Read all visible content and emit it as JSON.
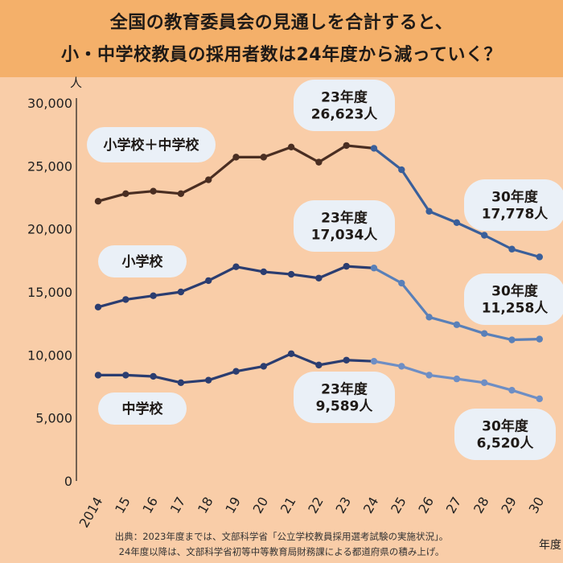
{
  "header": {
    "title_line1": "全国の教育委員会の見通しを合計すると、",
    "title_line2": "小・中学校教員の採用者数は24年度から減っていく？"
  },
  "footer": {
    "source_line1": "出典：2023年度までは、文部科学省「公立学校教員採用選考試験の実施状況」。",
    "source_line2": "24年度以降は、文部科学省初等中等教育局財務課による都道府県の積み上げ。"
  },
  "colors": {
    "background": "#f9cda8",
    "header_bg": "#f4b06a",
    "total_actual": "#4a2e22",
    "total_forecast": "#3a5f9a",
    "elementary_actual": "#2b3d70",
    "elementary_forecast": "#5a80b8",
    "junior_actual": "#2b3d70",
    "junior_forecast": "#6e8ec4",
    "bubble": "#eaf0f7",
    "axis": "#1a1a1a"
  },
  "chart_data": {
    "type": "line",
    "y_axis_unit": "人",
    "x_axis_unit": "年度",
    "x_tick_labels": [
      "2014",
      "15",
      "16",
      "17",
      "18",
      "19",
      "20",
      "21",
      "22",
      "23",
      "24",
      "25",
      "26",
      "27",
      "28",
      "29",
      "30"
    ],
    "y_ticks": [
      "0",
      "5,000",
      "10,000",
      "15,000",
      "20,000",
      "25,000",
      "30,000"
    ],
    "ylim": [
      0,
      30000
    ],
    "forecast_start_label": "24",
    "series": [
      {
        "name": "小学校＋中学校",
        "values": [
          22200,
          22800,
          23000,
          22800,
          23900,
          25700,
          25700,
          26500,
          25300,
          26623,
          26400,
          24700,
          21400,
          20500,
          19500,
          18400,
          17778
        ]
      },
      {
        "name": "小学校",
        "values": [
          13800,
          14400,
          14700,
          15000,
          15900,
          17000,
          16600,
          16400,
          16100,
          17034,
          16900,
          15700,
          13000,
          12400,
          11700,
          11200,
          11258
        ]
      },
      {
        "name": "中学校",
        "values": [
          8400,
          8400,
          8300,
          7800,
          8000,
          8700,
          9100,
          10100,
          9200,
          9589,
          9500,
          9100,
          8400,
          8100,
          7800,
          7200,
          6520
        ]
      }
    ],
    "annotations": [
      {
        "line1": "23年度",
        "line2": "26,623人"
      },
      {
        "line1": "30年度",
        "line2": "17,778人"
      },
      {
        "line1": "23年度",
        "line2": "17,034人"
      },
      {
        "line1": "30年度",
        "line2": "11,258人"
      },
      {
        "line1": "23年度",
        "line2": "9,589人"
      },
      {
        "line1": "30年度",
        "line2": "6,520人"
      }
    ]
  }
}
